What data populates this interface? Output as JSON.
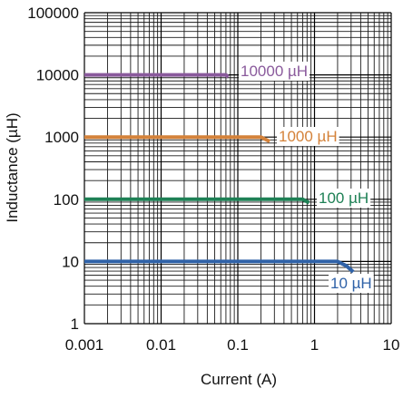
{
  "chart_data": {
    "type": "line",
    "title": "",
    "xlabel": "Current (A)",
    "ylabel": "Inductance (µH)",
    "xscale": "log",
    "yscale": "log",
    "xlim": [
      0.001,
      10
    ],
    "ylim": [
      1,
      100000
    ],
    "grid": true,
    "x_ticks": [
      "0.001",
      "0.01",
      "0.1",
      "1",
      "10"
    ],
    "y_ticks": [
      "1",
      "10",
      "100",
      "1000",
      "10000",
      "100000"
    ],
    "series": [
      {
        "name": "10000 µH",
        "color": "#8a5a9c",
        "x": [
          0.001,
          0.07,
          0.075
        ],
        "y": [
          10000,
          10000,
          9200
        ]
      },
      {
        "name": "1000 µH",
        "color": "#d4823a",
        "x": [
          0.001,
          0.2,
          0.26
        ],
        "y": [
          1000,
          1000,
          850
        ]
      },
      {
        "name": "100 µH",
        "color": "#1e8055",
        "x": [
          0.001,
          0.7,
          0.85
        ],
        "y": [
          100,
          100,
          88
        ]
      },
      {
        "name": "10 µH",
        "color": "#2f62a8",
        "x": [
          0.001,
          2.0,
          2.6,
          3.2
        ],
        "y": [
          10,
          10,
          8.5,
          6.8
        ]
      }
    ]
  }
}
